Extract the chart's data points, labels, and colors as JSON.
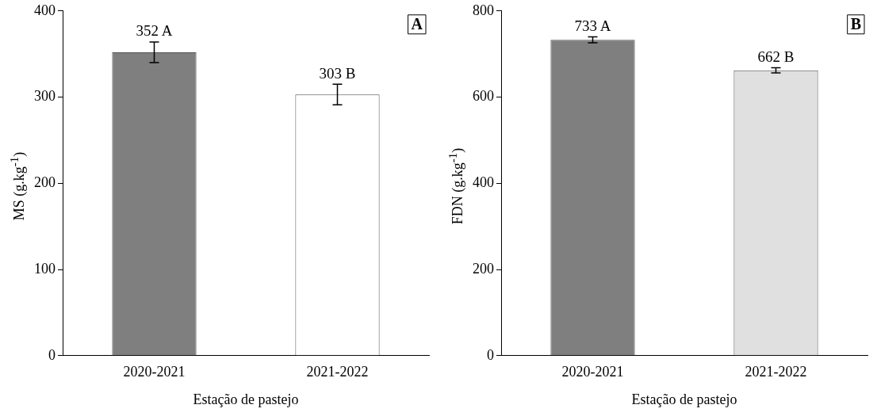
{
  "chart_data": [
    {
      "type": "bar",
      "categories": [
        "2020-2021",
        "2021-2022"
      ],
      "values": [
        352,
        303
      ],
      "colors": [
        "#7f7f7f",
        "#ffffff"
      ],
      "errors": [
        12,
        12
      ],
      "value_labels": [
        "352 A",
        "303 B"
      ],
      "ylim": [
        0,
        400
      ],
      "yticks": [
        0,
        100,
        200,
        300,
        400
      ],
      "xlabel": "Estação de pastejo",
      "ylabel": "MS (g.kg$^{-1}$)",
      "annotations": [
        "A"
      ]
    },
    {
      "type": "bar",
      "categories": [
        "2020-2021",
        "2021-2022"
      ],
      "values": [
        733,
        662
      ],
      "colors": [
        "#7f7f7f",
        "#e0e0e0"
      ],
      "errors": [
        7,
        6
      ],
      "value_labels": [
        "733 A",
        "662 B"
      ],
      "ylim": [
        0,
        800
      ],
      "yticks": [
        0,
        200,
        400,
        600,
        800
      ],
      "xlabel": "Estação de pastejo",
      "ylabel": "FDN (g.kg$^{-1}$)",
      "annotations": [
        "B"
      ]
    }
  ]
}
